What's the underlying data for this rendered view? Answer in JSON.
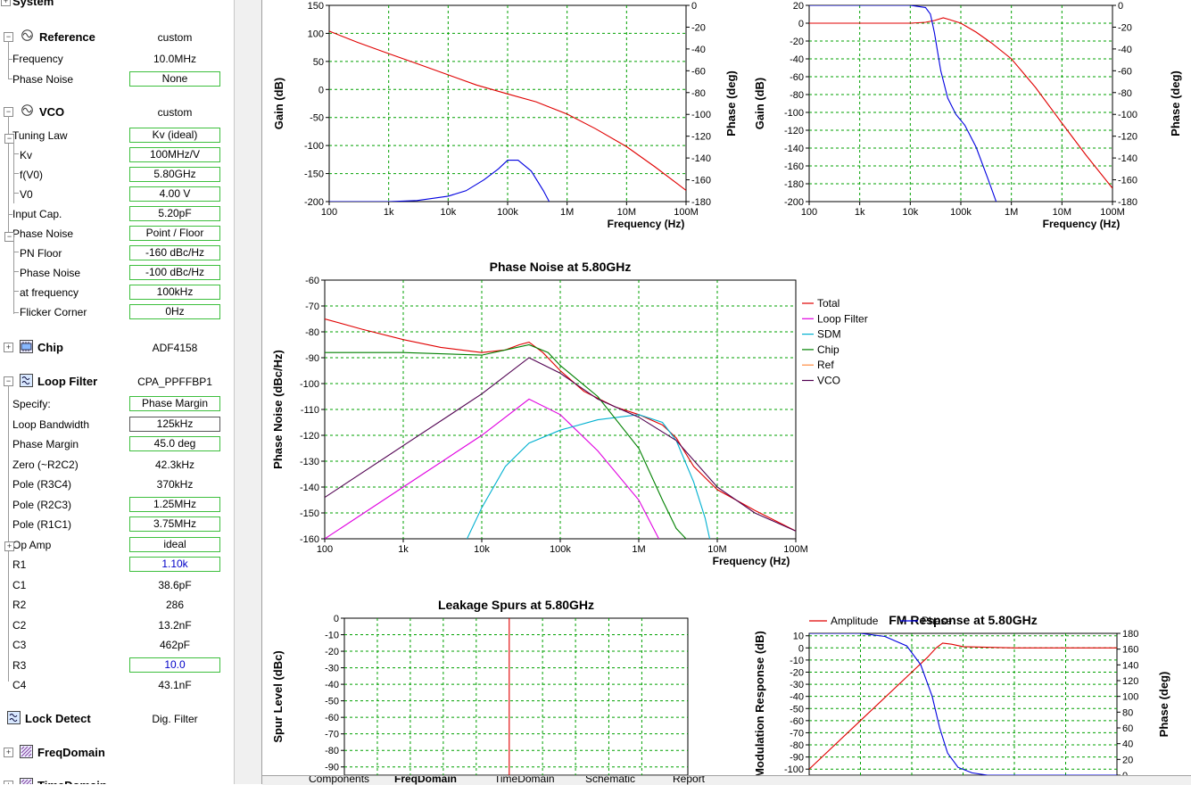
{
  "sidebar": {
    "system": {
      "label": "System"
    },
    "reference": {
      "label": "Reference",
      "value": "custom",
      "rows": [
        {
          "label": "Frequency",
          "value": "10.0MHz",
          "boxed": false
        },
        {
          "label": "Phase Noise",
          "value": "None",
          "boxed": true
        }
      ]
    },
    "vco": {
      "label": "VCO",
      "value": "custom",
      "rows": [
        {
          "label": "Tuning Law",
          "value": "Kv (ideal)",
          "boxed": true
        },
        {
          "label": "Kv",
          "value": "100MHz/V",
          "boxed": true
        },
        {
          "label": "f(V0)",
          "value": "5.80GHz",
          "boxed": true
        },
        {
          "label": "V0",
          "value": "4.00 V",
          "boxed": true
        },
        {
          "label": "Input Cap.",
          "value": "5.20pF",
          "boxed": true
        },
        {
          "label": "Phase Noise",
          "value": "Point / Floor",
          "boxed": true
        },
        {
          "label": "PN Floor",
          "value": "-160 dBc/Hz",
          "boxed": true
        },
        {
          "label": "Phase Noise",
          "value": "-100 dBc/Hz",
          "boxed": true
        },
        {
          "label": "at frequency",
          "value": "100kHz",
          "boxed": true
        },
        {
          "label": "Flicker Corner",
          "value": "0Hz",
          "boxed": true
        }
      ]
    },
    "chip": {
      "label": "Chip",
      "value": "ADF4158"
    },
    "loop_filter": {
      "label": "Loop Filter",
      "value": "CPA_PPFFBP1",
      "rows": [
        {
          "label": "Specify:",
          "value": "Phase Margin",
          "boxed": true
        },
        {
          "label": "Loop Bandwidth",
          "value": "125kHz",
          "boxed": true
        },
        {
          "label": "Phase Margin",
          "value": "45.0 deg",
          "boxed": true
        },
        {
          "label": "Zero (~R2C2)",
          "value": "42.3kHz",
          "boxed": false
        },
        {
          "label": "Pole (R3C4)",
          "value": "370kHz",
          "boxed": false
        },
        {
          "label": "Pole (R2C3)",
          "value": "1.25MHz",
          "boxed": true
        },
        {
          "label": "Pole (R1C1)",
          "value": "3.75MHz",
          "boxed": true
        },
        {
          "label": "Op Amp",
          "value": "ideal",
          "boxed": true
        },
        {
          "label": "R1",
          "value": "1.10k",
          "boxed": true
        },
        {
          "label": "C1",
          "value": "38.6pF",
          "boxed": false
        },
        {
          "label": "R2",
          "value": "286",
          "boxed": false
        },
        {
          "label": "C2",
          "value": "13.2nF",
          "boxed": false
        },
        {
          "label": "C3",
          "value": "462pF",
          "boxed": false
        },
        {
          "label": "R3",
          "value": "10.0",
          "boxed": true
        },
        {
          "label": "C4",
          "value": "43.1nF",
          "boxed": false
        }
      ]
    },
    "lock_detect": {
      "label": "Lock Detect",
      "value": "Dig. Filter"
    },
    "freq_domain": {
      "label": "FreqDomain"
    },
    "time_domain": {
      "label": "TimeDomain"
    }
  },
  "tabs": [
    "Components",
    "FreqDomain",
    "TimeDomain",
    "Schematic",
    "Report"
  ],
  "active_tab": "FreqDomain",
  "colors": {
    "red": "#e00000",
    "blue": "#0000e0",
    "magenta": "#e000e0",
    "cyan": "#00b0d0",
    "green": "#008000",
    "orange": "#ff8c40",
    "purple": "#500050",
    "grid": "#00a000"
  },
  "chart_data": [
    {
      "type": "line",
      "title": "",
      "xlabel": "Frequency (Hz)",
      "ylabel": "Gain (dB)",
      "y2label": "Phase (deg)",
      "xscale": "log",
      "xlim": [
        100,
        100000000
      ],
      "ylim": [
        -200,
        150
      ],
      "y2lim": [
        -180,
        0
      ],
      "xticks": [
        "100",
        "1k",
        "10k",
        "100k",
        "1M",
        "10M",
        "100M"
      ],
      "yticks": [
        "150",
        "100",
        "50",
        "0",
        "-50",
        "-100",
        "-150",
        "-200"
      ],
      "y2ticks": [
        "0",
        "-20",
        "-40",
        "-60",
        "-80",
        "-100",
        "-120",
        "-140",
        "-160",
        "-180"
      ],
      "series": [
        {
          "axis": "gain",
          "color": "red",
          "x": [
            100,
            300,
            1000,
            3000,
            10000,
            30000,
            100000,
            300000,
            1000000,
            3000000,
            10000000,
            30000000,
            100000000
          ],
          "y": [
            104,
            84,
            64,
            46,
            26,
            8,
            -8,
            -22,
            -44,
            -70,
            -102,
            -138,
            -180
          ]
        },
        {
          "axis": "phase",
          "color": "blue",
          "x": [
            100,
            300,
            1000,
            3000,
            10000,
            20000,
            40000,
            70000,
            100000,
            150000,
            250000,
            400000,
            500000
          ],
          "y": [
            -180,
            -180,
            -180,
            -179,
            -175,
            -170,
            -160,
            -150,
            -142,
            -142,
            -152,
            -170,
            -180
          ]
        }
      ]
    },
    {
      "type": "line",
      "title": "",
      "xlabel": "Frequency (Hz)",
      "ylabel": "Gain (dB)",
      "y2label": "Phase (deg)",
      "xscale": "log",
      "xlim": [
        100,
        100000000
      ],
      "ylim": [
        -200,
        20
      ],
      "y2lim": [
        -180,
        0
      ],
      "xticks": [
        "100",
        "1k",
        "10k",
        "100k",
        "1M",
        "10M",
        "100M"
      ],
      "yticks": [
        "20",
        "0",
        "-20",
        "-40",
        "-60",
        "-80",
        "-100",
        "-120",
        "-140",
        "-160",
        "-180",
        "-200"
      ],
      "y2ticks": [
        "0",
        "-20",
        "-40",
        "-60",
        "-80",
        "-100",
        "-120",
        "-140",
        "-160",
        "-180"
      ],
      "series": [
        {
          "axis": "gain",
          "color": "red",
          "x": [
            100,
            1000,
            10000,
            20000,
            30000,
            45000,
            60000,
            100000,
            200000,
            400000,
            1000000,
            3000000,
            10000000,
            30000000,
            100000000
          ],
          "y": [
            0,
            0,
            0,
            1,
            3,
            6,
            4,
            0,
            -10,
            -22,
            -40,
            -72,
            -112,
            -148,
            -185
          ]
        },
        {
          "axis": "phase",
          "color": "blue",
          "x": [
            100,
            1000,
            10000,
            20000,
            25000,
            30000,
            40000,
            55000,
            80000,
            120000,
            200000,
            350000,
            500000
          ],
          "y": [
            0,
            0,
            0,
            -2,
            -8,
            -25,
            -60,
            -85,
            -100,
            -110,
            -130,
            -160,
            -180
          ]
        }
      ]
    },
    {
      "type": "line",
      "title": "Phase Noise at 5.80GHz",
      "xlabel": "Frequency (Hz)",
      "ylabel": "Phase Noise (dBc/Hz)",
      "xscale": "log",
      "xlim": [
        100,
        100000000
      ],
      "ylim": [
        -160,
        -60
      ],
      "xticks": [
        "100",
        "1k",
        "10k",
        "100k",
        "1M",
        "10M",
        "100M"
      ],
      "yticks": [
        "-60",
        "-70",
        "-80",
        "-90",
        "-100",
        "-110",
        "-120",
        "-130",
        "-140",
        "-150",
        "-160"
      ],
      "legend": [
        "Total",
        "Loop Filter",
        "SDM",
        "Chip",
        "Ref",
        "VCO"
      ],
      "series": [
        {
          "name": "Total",
          "color": "red",
          "x": [
            100,
            300,
            1000,
            3000,
            10000,
            20000,
            30000,
            40000,
            60000,
            100000,
            200000,
            500000,
            1000000,
            2000000,
            3000000,
            5000000,
            10000000,
            30000000,
            100000000
          ],
          "y": [
            -75,
            -79,
            -83,
            -86,
            -88,
            -87,
            -85,
            -84,
            -88,
            -95,
            -103,
            -109,
            -112,
            -116,
            -121,
            -132,
            -141,
            -149,
            -157
          ]
        },
        {
          "name": "Loop Filter",
          "color": "magenta",
          "x": [
            100,
            1000,
            10000,
            40000,
            100000,
            300000,
            1000000,
            1800000
          ],
          "y": [
            -160,
            -140,
            -120,
            -106,
            -112,
            -126,
            -145,
            -160
          ]
        },
        {
          "name": "SDM",
          "color": "cyan",
          "x": [
            6500,
            10000,
            20000,
            40000,
            100000,
            300000,
            1000000,
            2000000,
            3000000,
            5000000,
            7000000,
            8000000
          ],
          "y": [
            -160,
            -148,
            -132,
            -123,
            -118,
            -114,
            -112,
            -115,
            -122,
            -138,
            -152,
            -160
          ]
        },
        {
          "name": "Chip",
          "color": "green",
          "x": [
            100,
            1000,
            10000,
            20000,
            40000,
            70000,
            100000,
            300000,
            1000000,
            2000000,
            3000000,
            4000000
          ],
          "y": [
            -88,
            -88,
            -89,
            -87,
            -85,
            -88,
            -93,
            -105,
            -125,
            -145,
            -156,
            -160
          ]
        },
        {
          "name": "Ref",
          "color": "orange",
          "x": [],
          "y": []
        },
        {
          "name": "VCO",
          "color": "purple",
          "x": [
            100,
            1000,
            10000,
            40000,
            100000,
            300000,
            1000000,
            3000000,
            10000000,
            30000000,
            100000000
          ],
          "y": [
            -144,
            -124,
            -104,
            -90,
            -96,
            -106,
            -113,
            -122,
            -140,
            -150,
            -157
          ]
        }
      ]
    },
    {
      "type": "line",
      "title": "Leakage Spurs at 5.80GHz",
      "ylabel": "Spur Level (dBc)",
      "ylim": [
        -95,
        0
      ],
      "yticks": [
        "0",
        "-10",
        "-20",
        "-30",
        "-40",
        "-50",
        "-60",
        "-70",
        "-80",
        "-90"
      ],
      "series": [
        {
          "color": "red",
          "x": [
            0.48
          ],
          "y": [
            0
          ]
        }
      ]
    },
    {
      "type": "line",
      "title": "FM Response at 5.80GHz",
      "ylabel": "Modulation Response (dB)",
      "y2label": "Phase (deg)",
      "xscale": "log",
      "xlim": [
        100,
        100000000
      ],
      "ylim": [
        -105,
        12
      ],
      "y2lim": [
        0,
        180
      ],
      "yticks": [
        "10",
        "0",
        "-10",
        "-20",
        "-30",
        "-40",
        "-50",
        "-60",
        "-70",
        "-80",
        "-90",
        "-100"
      ],
      "y2ticks": [
        "180",
        "160",
        "140",
        "120",
        "100",
        "80",
        "60",
        "40",
        "20",
        "0"
      ],
      "legend": [
        "Amplitude",
        "Phase"
      ],
      "series": [
        {
          "name": "Amplitude",
          "color": "red",
          "x": [
            100,
            1000,
            10000,
            20000,
            30000,
            40000,
            60000,
            100000,
            1000000,
            100000000
          ],
          "y": [
            -100,
            -60,
            -20,
            -8,
            0,
            4,
            3,
            1,
            0,
            0
          ]
        },
        {
          "name": "Phase",
          "color": "blue",
          "x": [
            100,
            1000,
            3000,
            8000,
            15000,
            25000,
            35000,
            50000,
            80000,
            150000,
            300000,
            1000000,
            100000000
          ],
          "y": [
            180,
            180,
            176,
            164,
            140,
            100,
            60,
            28,
            10,
            3,
            0,
            0,
            0
          ]
        }
      ]
    }
  ]
}
